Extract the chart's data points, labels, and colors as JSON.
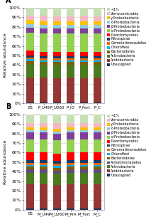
{
  "panel_A": {
    "categories": [
      "ES",
      "P_U49",
      "P_U260",
      "P_IO",
      "P_Fert",
      "P_C"
    ],
    "layers_order": [
      "Unassigned",
      "Acidobacteria",
      "Actinobacteria",
      "Bacteroidetes",
      "Chloroflexi",
      "Gemmatimonadetes",
      "Nitrospirae",
      "Planctomycetes",
      "a-Proteobacteria",
      "b-Proteobacteria",
      "d-Proteobacteria",
      "g-Proteobacteria",
      "Verrucomicrobia",
      "<1%"
    ],
    "layers": {
      "Unassigned": [
        1,
        1,
        1,
        1,
        1,
        1
      ],
      "Acidobacteria": [
        26,
        26,
        25,
        26,
        25,
        26
      ],
      "Actinobacteria": [
        14,
        13,
        14,
        13,
        14,
        13
      ],
      "Bacteroidetes": [
        3,
        3,
        3,
        3,
        3,
        3
      ],
      "Chloroflexi": [
        2,
        2,
        2,
        2,
        2,
        2
      ],
      "Gemmatimonadetes": [
        2,
        2,
        2,
        2,
        2,
        2
      ],
      "Nitrospirae": [
        2,
        2,
        2,
        2,
        2,
        2
      ],
      "Planctomycetes": [
        5,
        5,
        5,
        5,
        5,
        5
      ],
      "a-Proteobacteria": [
        19,
        19,
        19,
        19,
        19,
        19
      ],
      "b-Proteobacteria": [
        5,
        5,
        5,
        5,
        5,
        5
      ],
      "d-Proteobacteria": [
        4,
        4,
        4,
        4,
        4,
        4
      ],
      "g-Proteobacteria": [
        4,
        4,
        4,
        4,
        4,
        4
      ],
      "Verrucomicrobia": [
        5,
        6,
        5,
        5,
        6,
        5
      ],
      "<1%": [
        8,
        8,
        9,
        9,
        8,
        9
      ]
    }
  },
  "panel_B": {
    "categories": [
      "ES",
      "M_U49",
      "M_U260",
      "M_PrA",
      "M_Fert",
      "M_C"
    ],
    "layers_order": [
      "Unassigned",
      "Acidobacteria",
      "Actinobacteria",
      "Armatimonadetes",
      "Bacteroidetes",
      "Chloroflexi",
      "Gemmatimonadetes",
      "Nitrospirae",
      "Planctomycetes",
      "a-Proteobacteria",
      "b-Proteobacteria",
      "d-Proteobacteria",
      "g-Proteobacteria",
      "Verrucomicrobia",
      "<1%"
    ],
    "layers": {
      "Unassigned": [
        1,
        1,
        1,
        1,
        1,
        1
      ],
      "Acidobacteria": [
        26,
        26,
        25,
        26,
        26,
        26
      ],
      "Actinobacteria": [
        12,
        12,
        12,
        12,
        12,
        12
      ],
      "Armatimonadetes": [
        3,
        3,
        3,
        3,
        3,
        3
      ],
      "Bacteroidetes": [
        3,
        3,
        3,
        3,
        3,
        3
      ],
      "Chloroflexi": [
        2,
        2,
        2,
        2,
        2,
        2
      ],
      "Gemmatimonadetes": [
        2,
        2,
        2,
        2,
        2,
        2
      ],
      "Nitrospirae": [
        3,
        3,
        3,
        3,
        3,
        3
      ],
      "Planctomycetes": [
        8,
        8,
        8,
        8,
        8,
        8
      ],
      "a-Proteobacteria": [
        14,
        14,
        14,
        14,
        14,
        14
      ],
      "b-Proteobacteria": [
        7,
        7,
        7,
        7,
        7,
        7
      ],
      "d-Proteobacteria": [
        2,
        2,
        2,
        2,
        2,
        2
      ],
      "g-Proteobacteria": [
        3,
        3,
        3,
        3,
        3,
        3
      ],
      "Verrucomicrobia": [
        5,
        5,
        6,
        5,
        5,
        5
      ],
      "<1%": [
        9,
        9,
        9,
        9,
        9,
        9
      ]
    }
  },
  "colors": {
    "<1%": "#c6e0b4",
    "Verrucomicrobia": "#f4b8c1",
    "g-Proteobacteria": "#ffc000",
    "d-Proteobacteria": "#92cddc",
    "b-Proteobacteria": "#7f3f98",
    "a-Proteobacteria": "#92d050",
    "Planctomycetes": "#ff0000",
    "Nitrospirae": "#1f3864",
    "Gemmatimonadetes": "#e36c0a",
    "Chloroflexi": "#00b0f0",
    "Bacteroidetes": "#7f6000",
    "Armatimonadetes": "#604a7b",
    "Actinobacteria": "#4a7c1f",
    "Acidobacteria": "#953735",
    "Unassigned": "#17375e"
  },
  "legend_A": [
    "<1%",
    "Verrucomicrobia",
    "γ-Proteobacteria",
    "δ-Proteobacteria",
    "β-Proteobacteria",
    "α-Proteobacteria",
    "Planctomycetes",
    "Nitrospirae",
    "Gemmatimonadetes",
    "Chloroflexi",
    "Bacteroidetes",
    "Actinobacteria",
    "Acidobacteria",
    "Unassigned"
  ],
  "legend_A_keys": [
    "<1%",
    "Verrucomicrobia",
    "g-Proteobacteria",
    "d-Proteobacteria",
    "b-Proteobacteria",
    "a-Proteobacteria",
    "Planctomycetes",
    "Nitrospirae",
    "Gemmatimonadetes",
    "Chloroflexi",
    "Bacteroidetes",
    "Actinobacteria",
    "Acidobacteria",
    "Unassigned"
  ],
  "legend_B": [
    "<1%",
    "Verrucomicrobia",
    "γ-Proteobacteria",
    "δ-Proteobacteria",
    "β-Proteobacteria",
    "α-Proteobacteria",
    "Planctomycetes",
    "Nitrospirae",
    "Gemmatimonadetes",
    "Chloroflexi",
    "Bacteroidetes",
    "Armatimonadetes",
    "Actinobacteria",
    "Acidobacteria",
    "Unassigned"
  ],
  "legend_B_keys": [
    "<1%",
    "Verrucomicrobia",
    "g-Proteobacteria",
    "d-Proteobacteria",
    "b-Proteobacteria",
    "a-Proteobacteria",
    "Planctomycetes",
    "Nitrospirae",
    "Gemmatimonadetes",
    "Chloroflexi",
    "Bacteroidetes",
    "Armatimonadetes",
    "Actinobacteria",
    "Acidobacteria",
    "Unassigned"
  ]
}
